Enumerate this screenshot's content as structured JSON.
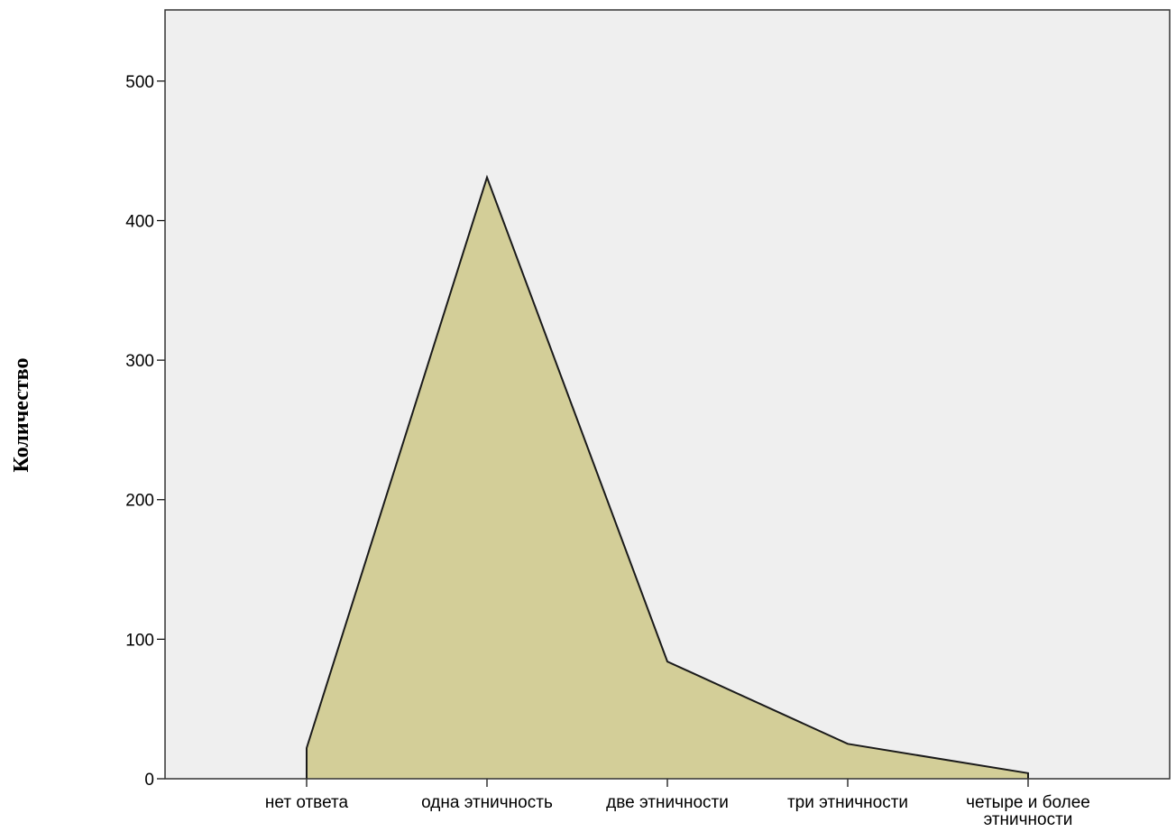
{
  "chart_data": {
    "type": "area",
    "title": "",
    "xlabel": "",
    "ylabel": "Количество",
    "categories": [
      [
        "нет ответа"
      ],
      [
        "одна этничность"
      ],
      [
        "две этничности"
      ],
      [
        "три этничности"
      ],
      [
        "четыре и более",
        "этничности"
      ]
    ],
    "values": [
      22,
      431,
      84,
      25,
      4
    ],
    "ylim": [
      0,
      551
    ],
    "yticks": [
      0,
      100,
      200,
      300,
      400,
      500
    ],
    "grid": false,
    "legend": "none",
    "colors": {
      "plot_background": "#efefef",
      "area_fill": "#d3ce98",
      "area_stroke": "#1a1a1a",
      "frame": "#333333"
    }
  }
}
